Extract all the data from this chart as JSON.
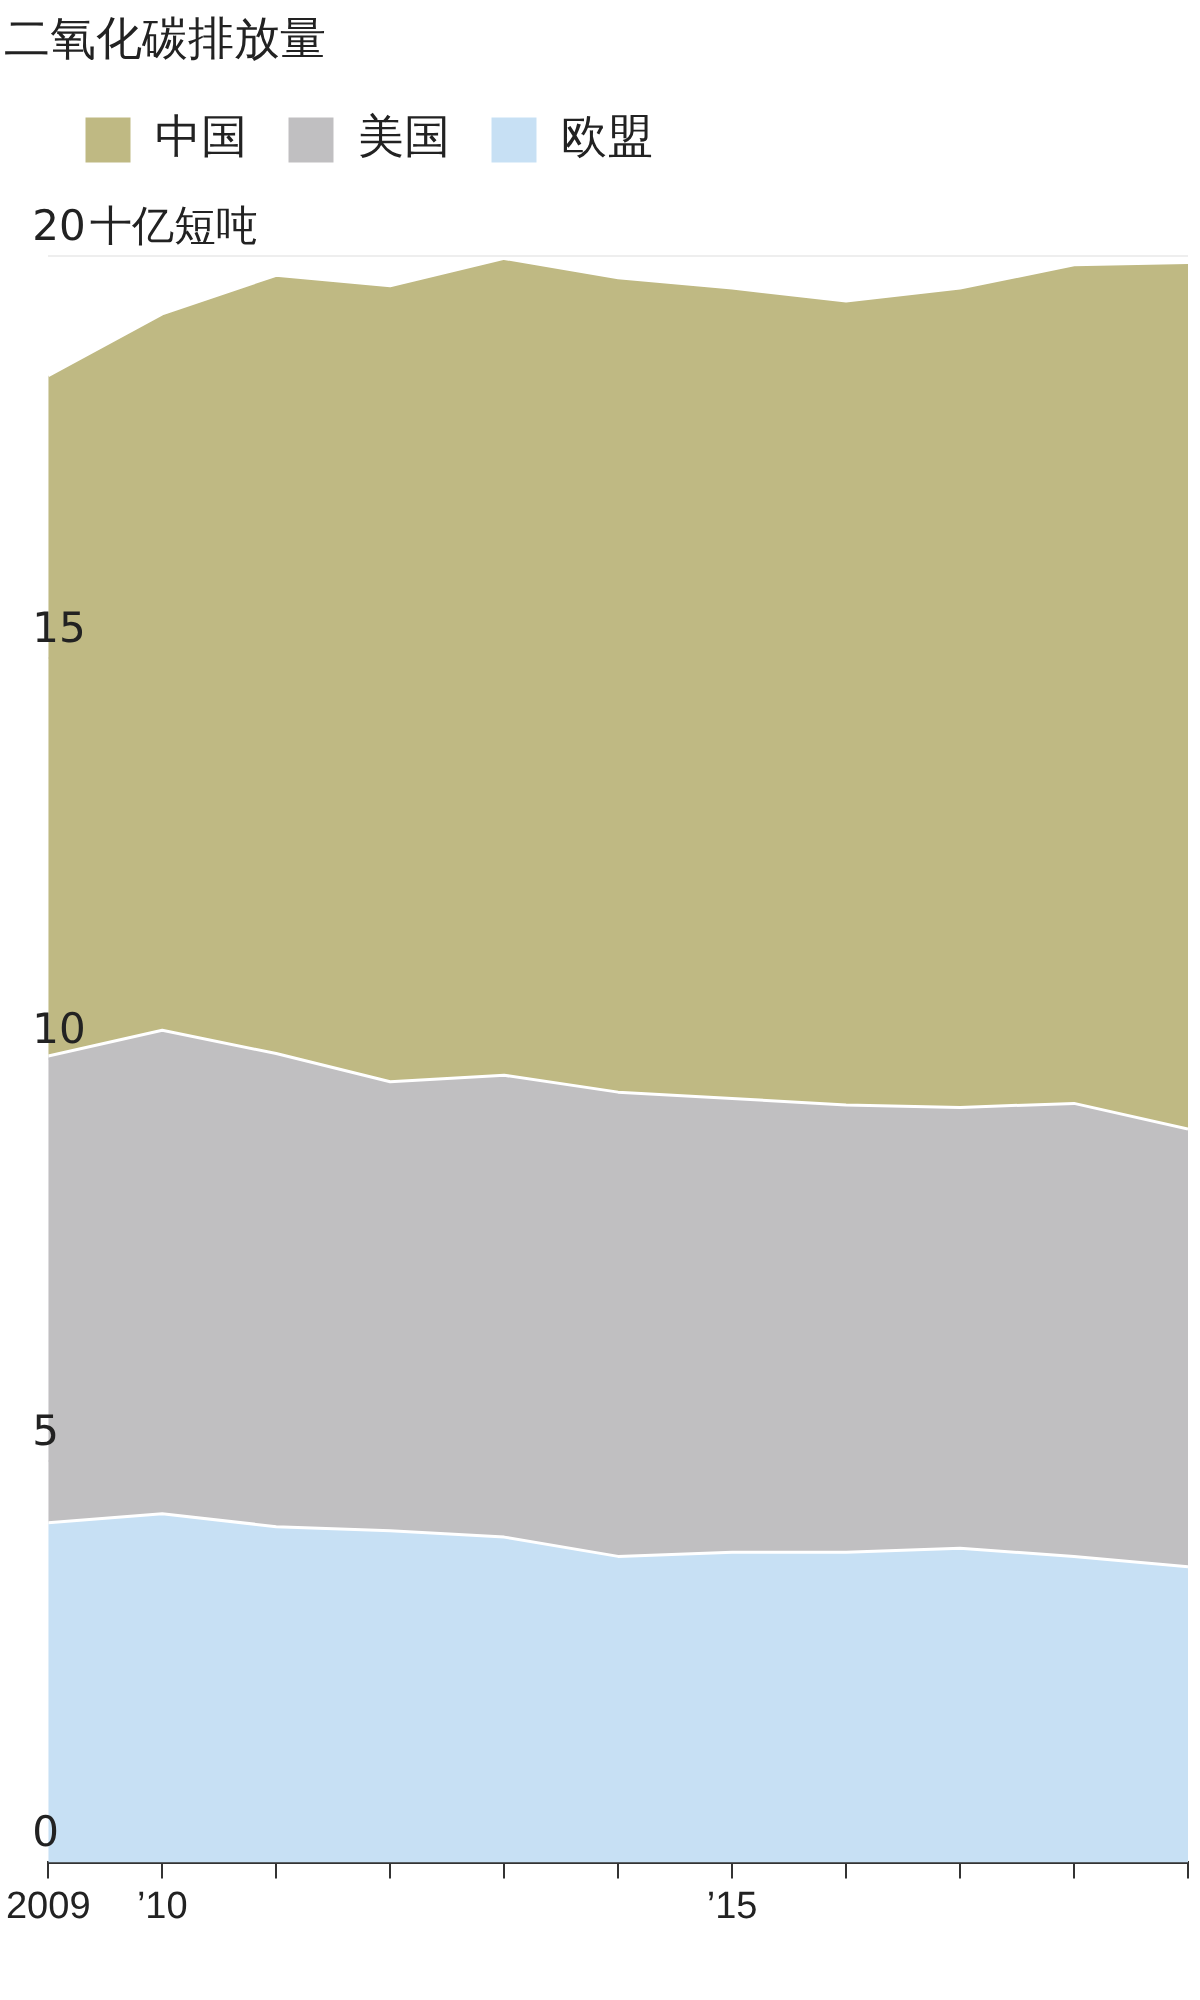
{
  "chart_data": {
    "type": "area",
    "title": "二氧化碳排放量",
    "ylabel": "十亿短吨",
    "x": [
      2009,
      2010,
      2011,
      2012,
      2013,
      2014,
      2015,
      2016,
      2017,
      2018,
      2019
    ],
    "stacked": true,
    "series": [
      {
        "name": "欧盟",
        "color": "#c7e0f4",
        "values": [
          4.23,
          4.34,
          4.18,
          4.13,
          4.05,
          3.81,
          3.86,
          3.86,
          3.91,
          3.81,
          3.68
        ]
      },
      {
        "name": "美国",
        "color": "#c0bfc1",
        "values": [
          5.81,
          6.02,
          5.89,
          5.59,
          5.75,
          5.78,
          5.65,
          5.57,
          5.49,
          5.64,
          5.45
        ]
      },
      {
        "name": "中国",
        "color": "#bfb983",
        "values": [
          8.47,
          8.92,
          9.69,
          9.91,
          10.17,
          10.14,
          10.09,
          10.01,
          10.2,
          10.44,
          10.79
        ]
      }
    ],
    "xlim": [
      2009,
      2019
    ],
    "xticks": [
      2009,
      {
        "value": 2010,
        "label": "’10"
      },
      {
        "value": 2011,
        "label": null
      },
      {
        "value": 2012,
        "label": null
      },
      {
        "value": 2013,
        "label": null
      },
      {
        "value": 2014,
        "label": null
      },
      {
        "value": 2015,
        "label": "’15"
      },
      {
        "value": 2016,
        "label": null
      },
      {
        "value": 2017,
        "label": null
      },
      {
        "value": 2018,
        "label": null
      },
      {
        "value": 2019,
        "label": null
      }
    ],
    "ylim": [
      0,
      20
    ],
    "yticks": [
      0,
      5,
      10,
      15,
      20
    ],
    "grid": "y",
    "legend": "top left"
  }
}
